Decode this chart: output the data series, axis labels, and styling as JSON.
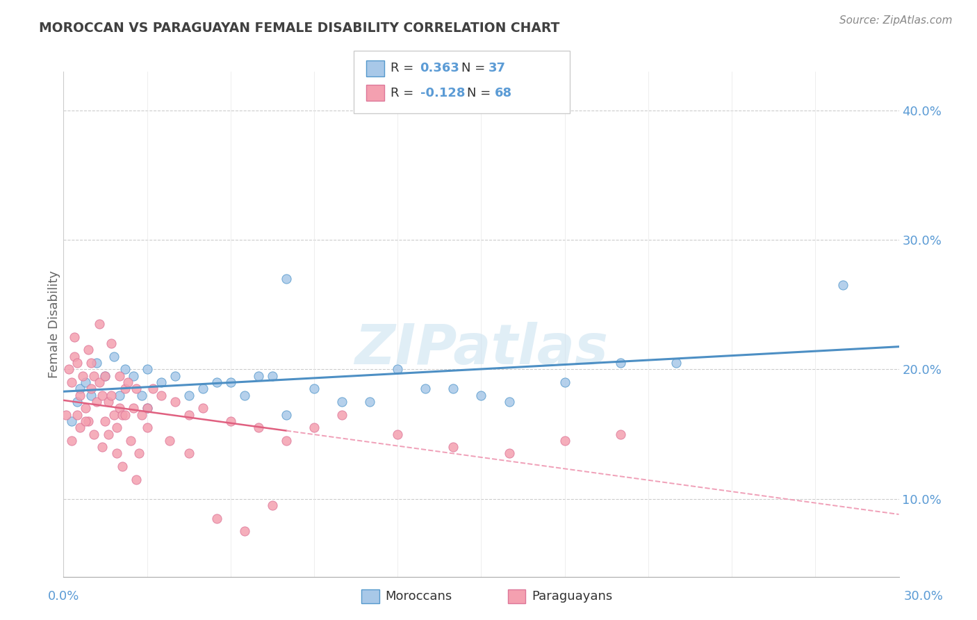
{
  "title": "MOROCCAN VS PARAGUAYAN FEMALE DISABILITY CORRELATION CHART",
  "source": "Source: ZipAtlas.com",
  "ylabel": "Female Disability",
  "xlim": [
    0.0,
    30.0
  ],
  "ylim": [
    4.0,
    43.0
  ],
  "yticks": [
    10.0,
    20.0,
    30.0,
    40.0
  ],
  "xticks": [
    0.0,
    3.0,
    6.0,
    9.0,
    12.0,
    15.0,
    18.0,
    21.0,
    24.0,
    27.0,
    30.0
  ],
  "blue_color": "#a8c8e8",
  "pink_color": "#f4a0b0",
  "blue_edge": "#5599cc",
  "pink_edge": "#dd7799",
  "blue_line": "#4d8fc4",
  "pink_line_solid": "#e06080",
  "pink_line_dash": "#f0a0b8",
  "title_color": "#404040",
  "axis_color": "#5b9bd5",
  "watermark": "ZIPatlas",
  "moroccans_x": [
    0.3,
    0.5,
    0.6,
    0.8,
    1.0,
    1.2,
    1.5,
    1.8,
    2.0,
    2.2,
    2.5,
    2.8,
    3.0,
    3.5,
    4.0,
    5.0,
    6.0,
    7.0,
    8.0,
    10.0,
    12.0,
    14.0,
    15.0,
    18.0,
    20.0,
    28.0,
    8.0,
    3.0,
    4.5,
    5.5,
    6.5,
    7.5,
    9.0,
    11.0,
    13.0,
    16.0,
    22.0
  ],
  "moroccans_y": [
    16.0,
    17.5,
    18.5,
    19.0,
    18.0,
    20.5,
    19.5,
    21.0,
    18.0,
    20.0,
    19.5,
    18.0,
    20.0,
    19.0,
    19.5,
    18.5,
    19.0,
    19.5,
    27.0,
    17.5,
    20.0,
    18.5,
    18.0,
    19.0,
    20.5,
    26.5,
    16.5,
    17.0,
    18.0,
    19.0,
    18.0,
    19.5,
    18.5,
    17.5,
    18.5,
    17.5,
    20.5
  ],
  "paraguayans_x": [
    0.1,
    0.2,
    0.3,
    0.4,
    0.5,
    0.5,
    0.6,
    0.7,
    0.8,
    0.9,
    1.0,
    1.0,
    1.1,
    1.2,
    1.3,
    1.4,
    1.5,
    1.5,
    1.6,
    1.7,
    1.8,
    1.9,
    2.0,
    2.0,
    2.1,
    2.2,
    2.3,
    2.5,
    2.6,
    2.8,
    3.0,
    3.2,
    3.5,
    4.0,
    4.5,
    5.0,
    6.0,
    7.0,
    8.0,
    9.0,
    10.0,
    12.0,
    14.0,
    16.0,
    18.0,
    20.0,
    0.3,
    0.6,
    0.8,
    1.1,
    1.4,
    1.6,
    1.9,
    2.2,
    2.4,
    2.7,
    3.0,
    3.8,
    4.5,
    0.4,
    0.9,
    1.3,
    1.7,
    2.1,
    2.6,
    5.5,
    6.5,
    7.5
  ],
  "paraguayans_y": [
    16.5,
    20.0,
    19.0,
    21.0,
    16.5,
    20.5,
    18.0,
    19.5,
    17.0,
    16.0,
    18.5,
    20.5,
    19.5,
    17.5,
    19.0,
    18.0,
    19.5,
    16.0,
    17.5,
    18.0,
    16.5,
    15.5,
    17.0,
    19.5,
    16.5,
    18.5,
    19.0,
    17.0,
    18.5,
    16.5,
    17.0,
    18.5,
    18.0,
    17.5,
    16.5,
    17.0,
    16.0,
    15.5,
    14.5,
    15.5,
    16.5,
    15.0,
    14.0,
    13.5,
    14.5,
    15.0,
    14.5,
    15.5,
    16.0,
    15.0,
    14.0,
    15.0,
    13.5,
    16.5,
    14.5,
    13.5,
    15.5,
    14.5,
    13.5,
    22.5,
    21.5,
    23.5,
    22.0,
    12.5,
    11.5,
    8.5,
    7.5,
    9.5
  ],
  "pink_solid_xmax": 8.0,
  "pink_dash_xmin": 8.0
}
